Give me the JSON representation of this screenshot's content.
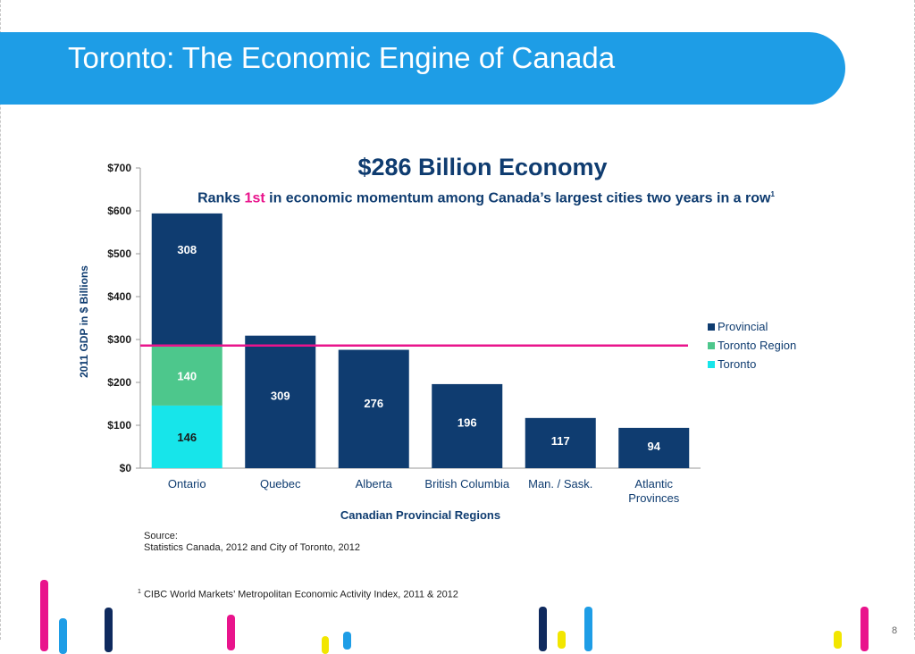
{
  "slide": {
    "title": "Toronto: The Economic Engine of Canada",
    "headline": "$286 Billion Economy",
    "subtitle_before": "Ranks ",
    "subtitle_highlight": "1st",
    "subtitle_after": " in economic momentum among Canada’s largest cities two years in a row",
    "subtitle_sup": "1",
    "source_label": "Source:",
    "source_text": "Statistics Canada, 2012 and City of Toronto, 2012",
    "footnote_sup": "1",
    "footnote_text": "CIBC World Markets’ Metropolitan Economic Activity Index, 2011 & 2012",
    "page_number": "8"
  },
  "colors": {
    "title_bar": "#1e9de6",
    "provincial": "#0f3c70",
    "toronto_region": "#4dc78c",
    "toronto": "#17e5ea",
    "reference_line": "#e9148c",
    "highlight": "#e9148c"
  },
  "chart_data": {
    "type": "bar",
    "stacked": true,
    "categories": [
      "Ontario",
      "Quebec",
      "Alberta",
      "British Columbia",
      "Man. / Sask.",
      "Atlantic Provinces"
    ],
    "category_lines": [
      [
        "Ontario"
      ],
      [
        "Quebec"
      ],
      [
        "Alberta"
      ],
      [
        "British Columbia"
      ],
      [
        "Man. / Sask."
      ],
      [
        "Atlantic",
        "Provinces"
      ]
    ],
    "series": [
      {
        "name": "Toronto",
        "color": "#17e5ea",
        "values": [
          146,
          0,
          0,
          0,
          0,
          0
        ]
      },
      {
        "name": "Toronto Region",
        "color": "#4dc78c",
        "values": [
          140,
          0,
          0,
          0,
          0,
          0
        ]
      },
      {
        "name": "Provincial",
        "color": "#0f3c70",
        "values": [
          308,
          309,
          276,
          196,
          117,
          94
        ]
      }
    ],
    "legend": {
      "placement": "right",
      "order": [
        "Provincial",
        "Toronto Region",
        "Toronto"
      ]
    },
    "reference_line": 286,
    "xlabel": "Canadian Provincial Regions",
    "ylabel": "2011 GDP in $ Billions",
    "ylim": [
      0,
      700
    ],
    "yticks": [
      0,
      100,
      200,
      300,
      400,
      500,
      600,
      700
    ],
    "ytick_labels": [
      "$0",
      "$100",
      "$200",
      "$300",
      "$400",
      "$500",
      "$600",
      "$700"
    ],
    "grid": false
  }
}
